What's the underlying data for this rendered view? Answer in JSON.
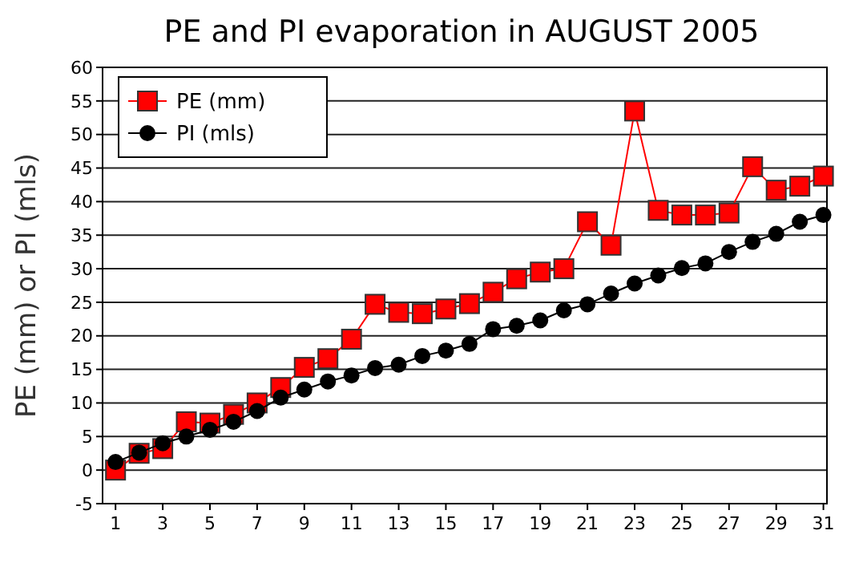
{
  "chart_data": {
    "type": "line",
    "title": "PE and PI evaporation in AUGUST 2005",
    "ylabel": "PE (mm) or PI (mls)",
    "x": [
      1,
      2,
      3,
      4,
      5,
      6,
      7,
      8,
      9,
      10,
      11,
      12,
      13,
      14,
      15,
      16,
      17,
      18,
      19,
      20,
      21,
      22,
      23,
      24,
      25,
      26,
      27,
      28,
      29,
      30,
      31
    ],
    "xlim": [
      0.45,
      31.15
    ],
    "xticks": [
      1,
      3,
      5,
      7,
      9,
      11,
      13,
      15,
      17,
      19,
      21,
      23,
      25,
      27,
      29,
      31
    ],
    "ylim": [
      -5,
      60
    ],
    "yticks": [
      -5,
      0,
      5,
      10,
      15,
      20,
      25,
      30,
      35,
      40,
      45,
      50,
      55,
      60
    ],
    "grid": "y",
    "legend": "top left",
    "series": [
      {
        "name": "PE (mm)",
        "color": "#ff0000",
        "marker": "square",
        "values": [
          0,
          2.5,
          3.2,
          7.2,
          7,
          8.3,
          10,
          12.3,
          15.3,
          16.6,
          19.5,
          24.7,
          23.5,
          23.3,
          24,
          24.8,
          26.5,
          28.5,
          29.5,
          30,
          37,
          33.5,
          53.5,
          38.7,
          38,
          38,
          38.3,
          45.2,
          41.7,
          42.3,
          43.8
        ]
      },
      {
        "name": "PI (mls)",
        "color": "#000000",
        "marker": "circle",
        "values": [
          1.2,
          2.6,
          4,
          5,
          6,
          7.2,
          8.8,
          10.8,
          12,
          13.2,
          14.1,
          15.2,
          15.7,
          17,
          17.8,
          18.8,
          21,
          21.5,
          22.3,
          23.8,
          24.7,
          26.3,
          27.8,
          29,
          30.1,
          30.8,
          32.5,
          34,
          35.2,
          37,
          38
        ]
      }
    ]
  }
}
